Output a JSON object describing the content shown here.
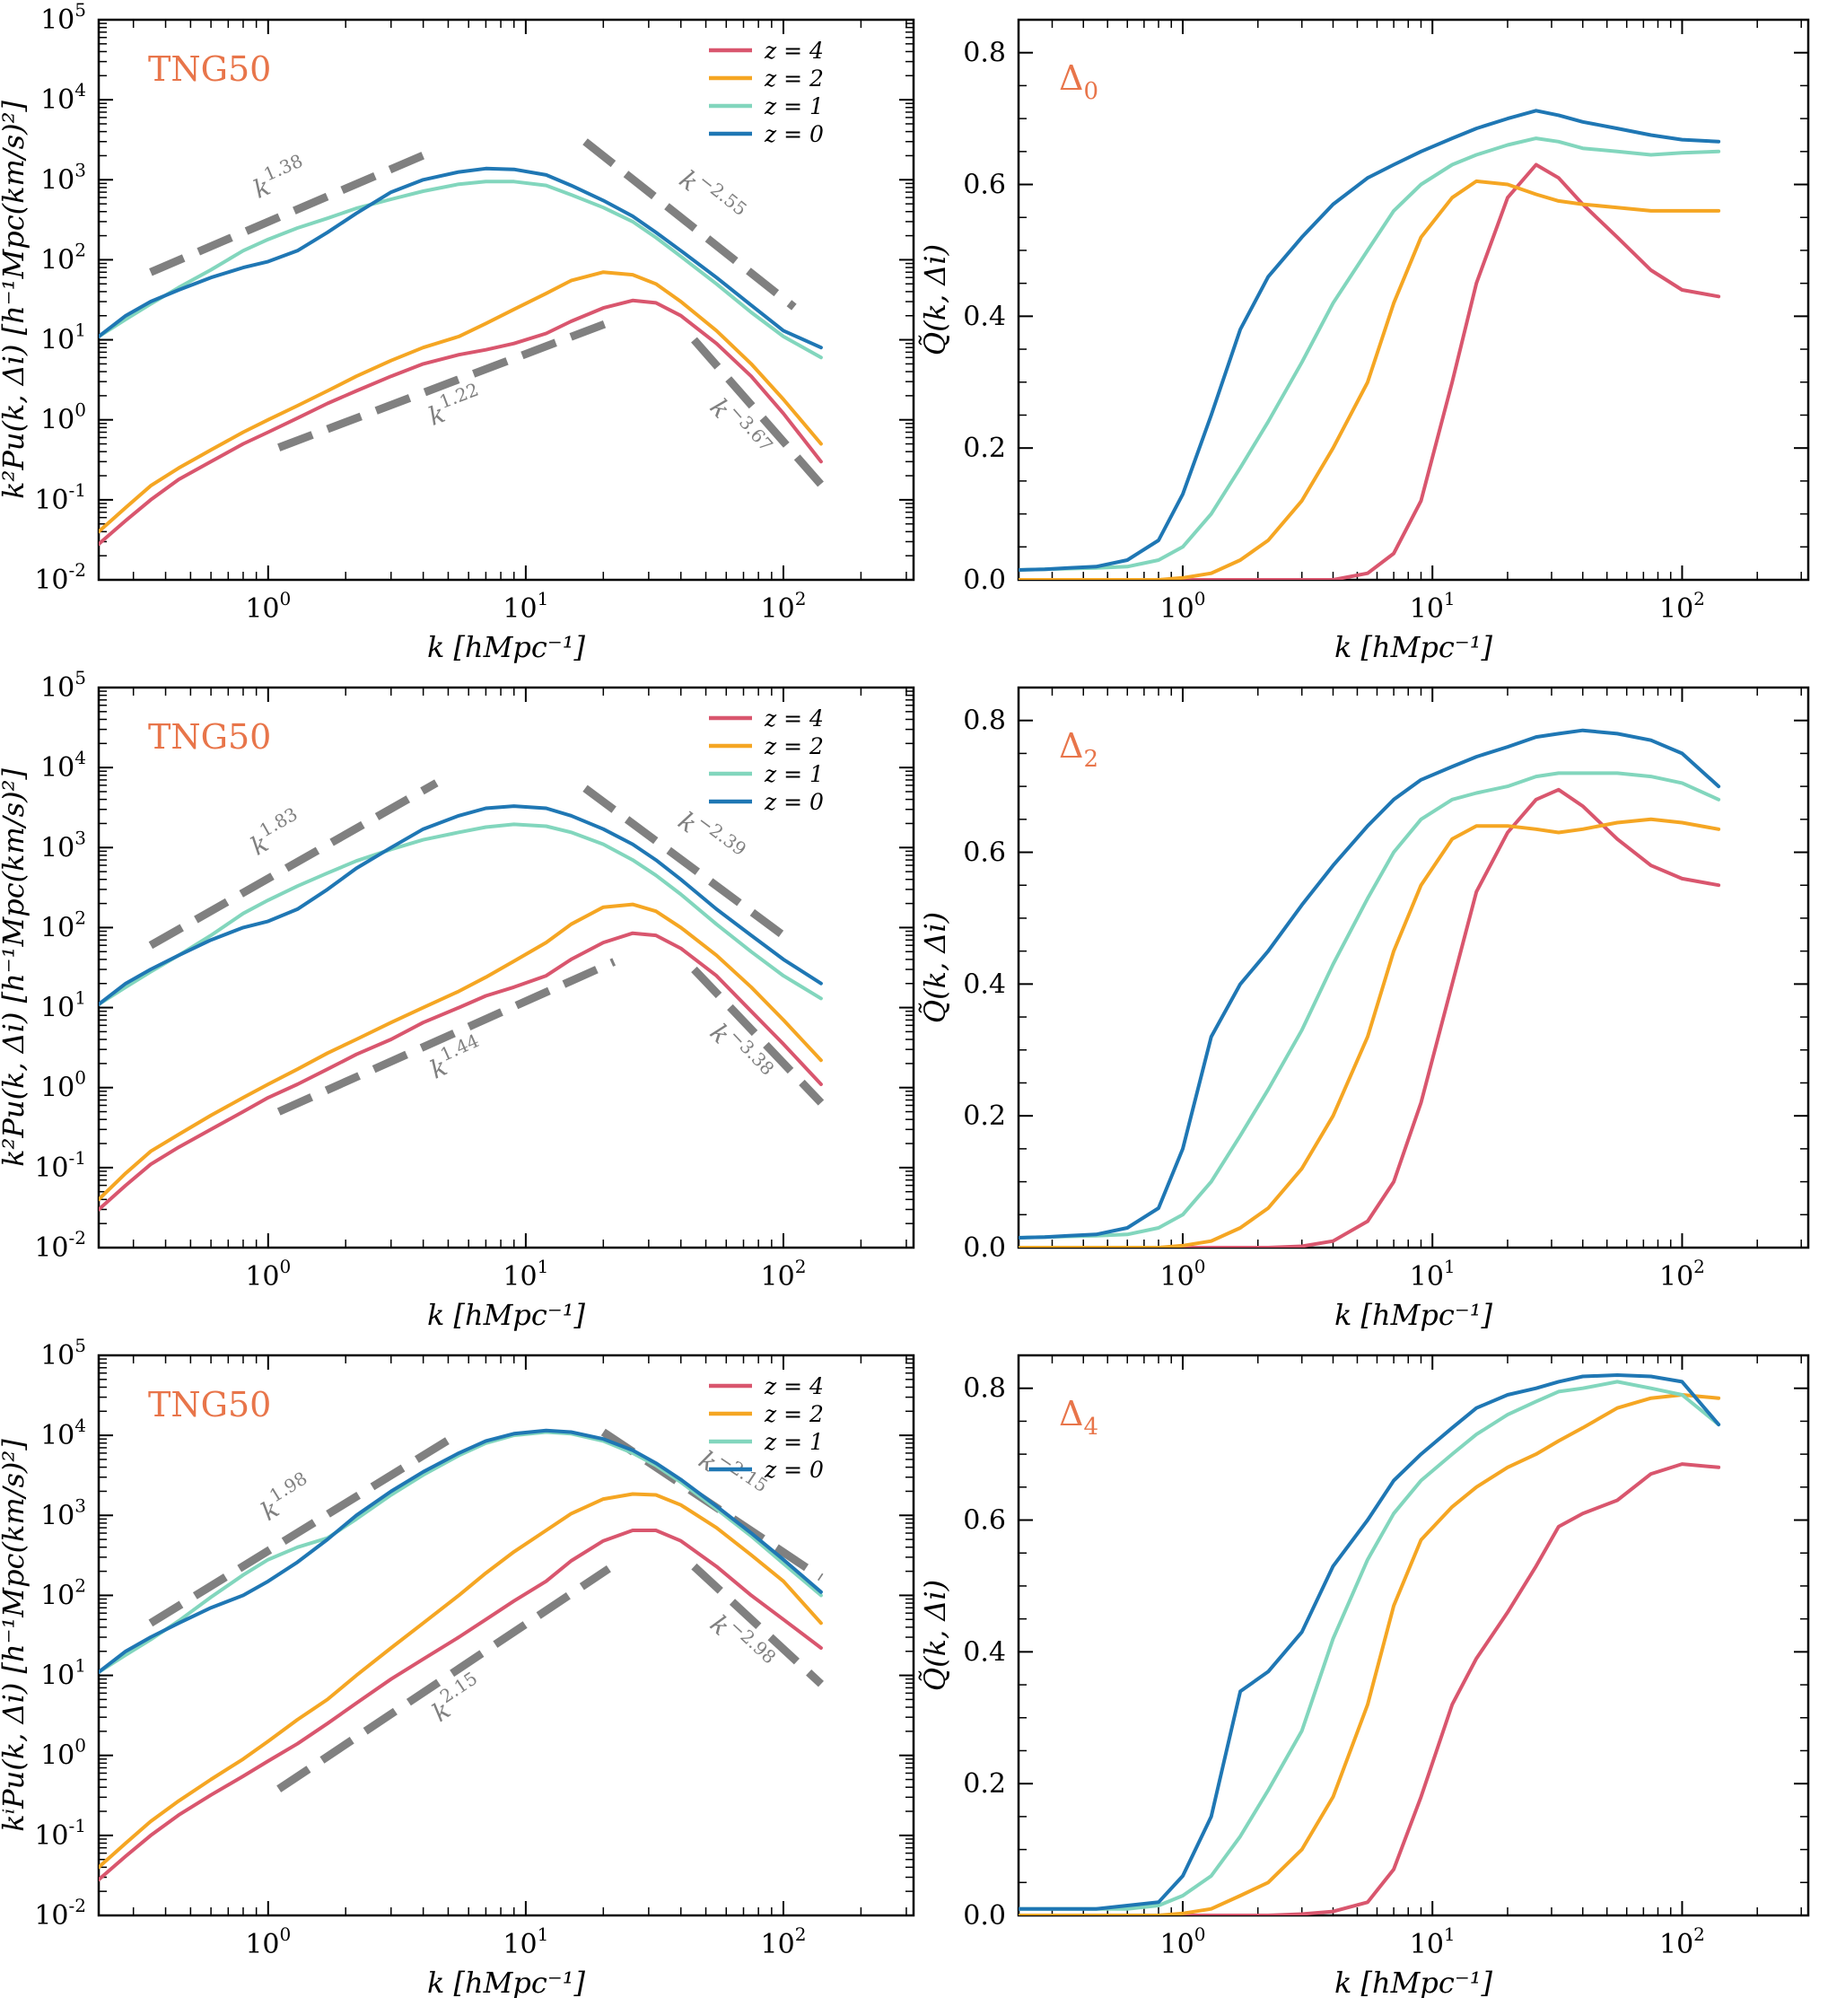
{
  "colors": {
    "z4": "#d9566e",
    "z2": "#f5a623",
    "z1": "#82d6bd",
    "z0": "#1f77b4",
    "guide": "#808080",
    "tag": "#e8754a"
  },
  "legend": [
    "z = 4",
    "z = 2",
    "z = 1",
    "z = 0"
  ],
  "axis_text": {
    "xlabel": "k [hMpc⁻¹]",
    "ylabel_left_top": "k²P̃u(k, Δi) [h⁻¹Mpc(km/s)²]",
    "ylabel_left_bottom": "kⁱP̃u(k, Δi) [h⁻¹Mpc(km/s)²]",
    "ylabel_right": "Q̃(k, Δi)"
  },
  "chart_data": [
    {
      "id": "power-delta0",
      "type": "line",
      "tag": "TNG50",
      "xscale": "log",
      "yscale": "log",
      "xlim": [
        0.22,
        320
      ],
      "ylim": [
        0.01,
        100000
      ],
      "xticks": [
        "10^0",
        "10^1",
        "10^2"
      ],
      "yticks": [
        "10^-2",
        "10^-1",
        "10^0",
        "10^1",
        "10^2",
        "10^3",
        "10^4",
        "10^5"
      ],
      "x": [
        0.22,
        0.28,
        0.35,
        0.45,
        0.6,
        0.8,
        1.0,
        1.3,
        1.7,
        2.2,
        3,
        4,
        5.5,
        7,
        9,
        12,
        15,
        20,
        26,
        32,
        40,
        55,
        75,
        100,
        140
      ],
      "series": [
        {
          "name": "z = 4",
          "values": [
            0.028,
            0.055,
            0.1,
            0.18,
            0.3,
            0.5,
            0.7,
            1.05,
            1.6,
            2.3,
            3.5,
            5,
            6.5,
            7.5,
            9,
            12,
            17,
            25,
            31,
            29,
            20,
            9,
            3.5,
            1.2,
            0.3
          ]
        },
        {
          "name": "z = 2",
          "values": [
            0.04,
            0.08,
            0.15,
            0.25,
            0.42,
            0.7,
            1.0,
            1.5,
            2.3,
            3.5,
            5.5,
            8,
            11,
            16,
            24,
            38,
            55,
            70,
            65,
            50,
            30,
            13,
            5,
            1.8,
            0.5
          ]
        },
        {
          "name": "z = 1",
          "values": [
            11,
            18,
            28,
            45,
            75,
            130,
            180,
            250,
            330,
            440,
            570,
            720,
            880,
            950,
            950,
            850,
            650,
            450,
            300,
            190,
            110,
            50,
            22,
            11,
            6
          ]
        },
        {
          "name": "z = 0",
          "values": [
            11,
            20,
            30,
            42,
            60,
            80,
            95,
            130,
            220,
            380,
            700,
            1000,
            1250,
            1380,
            1350,
            1150,
            850,
            550,
            350,
            220,
            130,
            60,
            27,
            13,
            8
          ]
        }
      ],
      "guides": [
        {
          "label": "k",
          "exp": "1.38",
          "slope": 1.38,
          "x": [
            0.35,
            4.5
          ],
          "y0": 70
        },
        {
          "label": "k",
          "exp": "−2.55",
          "slope": -2.55,
          "x": [
            17,
            110
          ],
          "y0": 3000
        },
        {
          "label": "k",
          "exp": "1.22",
          "slope": 1.22,
          "x": [
            1.1,
            22
          ],
          "y0": 0.45
        },
        {
          "label": "k",
          "exp": "−3.67",
          "slope": -3.67,
          "x": [
            45,
            140
          ],
          "y0": 10
        }
      ]
    },
    {
      "id": "q-delta0",
      "type": "line",
      "tag": "Δ0",
      "xscale": "log",
      "yscale": "linear",
      "xlim": [
        0.22,
        320
      ],
      "ylim": [
        0,
        0.85
      ],
      "xticks": [
        "10^0",
        "10^1",
        "10^2"
      ],
      "yticks": [
        "0.0",
        "0.2",
        "0.4",
        "0.6",
        "0.8"
      ],
      "x": [
        0.22,
        0.28,
        0.35,
        0.45,
        0.6,
        0.8,
        1.0,
        1.3,
        1.7,
        2.2,
        3,
        4,
        5.5,
        7,
        9,
        12,
        15,
        20,
        26,
        32,
        40,
        55,
        75,
        100,
        140
      ],
      "series": [
        {
          "name": "z = 4",
          "values": [
            0,
            0,
            0,
            0,
            0,
            0,
            0,
            0,
            0,
            0,
            0,
            0,
            0.01,
            0.04,
            0.12,
            0.3,
            0.45,
            0.58,
            0.63,
            0.61,
            0.57,
            0.52,
            0.47,
            0.44,
            0.43
          ]
        },
        {
          "name": "z = 2",
          "values": [
            0,
            0,
            0,
            0,
            0,
            0,
            0.003,
            0.01,
            0.03,
            0.06,
            0.12,
            0.2,
            0.3,
            0.42,
            0.52,
            0.58,
            0.605,
            0.6,
            0.585,
            0.575,
            0.57,
            0.565,
            0.56,
            0.56,
            0.56
          ]
        },
        {
          "name": "z = 1",
          "values": [
            0.015,
            0.016,
            0.017,
            0.018,
            0.02,
            0.03,
            0.05,
            0.1,
            0.17,
            0.24,
            0.33,
            0.42,
            0.5,
            0.56,
            0.6,
            0.63,
            0.645,
            0.66,
            0.67,
            0.665,
            0.655,
            0.65,
            0.645,
            0.648,
            0.65
          ]
        },
        {
          "name": "z = 0",
          "values": [
            0.015,
            0.016,
            0.018,
            0.02,
            0.03,
            0.06,
            0.13,
            0.25,
            0.38,
            0.46,
            0.52,
            0.57,
            0.61,
            0.63,
            0.65,
            0.67,
            0.685,
            0.7,
            0.712,
            0.705,
            0.695,
            0.685,
            0.675,
            0.668,
            0.665
          ]
        }
      ]
    },
    {
      "id": "power-delta2",
      "type": "line",
      "tag": "TNG50",
      "xscale": "log",
      "yscale": "log",
      "xlim": [
        0.22,
        320
      ],
      "ylim": [
        0.01,
        100000
      ],
      "xticks": [
        "10^0",
        "10^1",
        "10^2"
      ],
      "yticks": [
        "10^-2",
        "10^-1",
        "10^0",
        "10^1",
        "10^2",
        "10^3",
        "10^4",
        "10^5"
      ],
      "x": [
        0.22,
        0.28,
        0.35,
        0.45,
        0.6,
        0.8,
        1.0,
        1.3,
        1.7,
        2.2,
        3,
        4,
        5.5,
        7,
        9,
        12,
        15,
        20,
        26,
        32,
        40,
        55,
        75,
        100,
        140
      ],
      "series": [
        {
          "name": "z = 4",
          "values": [
            0.03,
            0.06,
            0.11,
            0.18,
            0.3,
            0.5,
            0.75,
            1.1,
            1.7,
            2.6,
            4,
            6.5,
            10,
            14,
            18,
            25,
            40,
            65,
            85,
            80,
            55,
            25,
            9,
            3.5,
            1.1
          ]
        },
        {
          "name": "z = 2",
          "values": [
            0.04,
            0.085,
            0.16,
            0.26,
            0.45,
            0.75,
            1.1,
            1.7,
            2.7,
            4,
            6.5,
            10,
            16,
            24,
            38,
            65,
            110,
            180,
            195,
            160,
            100,
            45,
            18,
            7,
            2.2
          ]
        },
        {
          "name": "z = 1",
          "values": [
            11,
            18,
            28,
            45,
            80,
            150,
            220,
            330,
            480,
            680,
            950,
            1250,
            1550,
            1800,
            1950,
            1850,
            1550,
            1100,
            700,
            450,
            260,
            110,
            50,
            25,
            13
          ]
        },
        {
          "name": "z = 0",
          "values": [
            11,
            20,
            30,
            45,
            70,
            100,
            120,
            170,
            300,
            550,
            1000,
            1700,
            2500,
            3100,
            3300,
            3100,
            2500,
            1700,
            1100,
            700,
            400,
            170,
            80,
            40,
            20
          ]
        }
      ],
      "guides": [
        {
          "label": "k",
          "exp": "1.83",
          "slope": 1.83,
          "x": [
            0.35,
            4.5
          ],
          "y0": 60
        },
        {
          "label": "k",
          "exp": "−2.39",
          "slope": -2.39,
          "x": [
            17,
            110
          ],
          "y0": 5500
        },
        {
          "label": "k",
          "exp": "1.44",
          "slope": 1.44,
          "x": [
            1.1,
            22
          ],
          "y0": 0.5
        },
        {
          "label": "k",
          "exp": "−3.38",
          "slope": -3.38,
          "x": [
            45,
            140
          ],
          "y0": 30
        }
      ]
    },
    {
      "id": "q-delta2",
      "type": "line",
      "tag": "Δ2",
      "xscale": "log",
      "yscale": "linear",
      "xlim": [
        0.22,
        320
      ],
      "ylim": [
        0,
        0.85
      ],
      "xticks": [
        "10^0",
        "10^1",
        "10^2"
      ],
      "yticks": [
        "0.0",
        "0.2",
        "0.4",
        "0.6",
        "0.8"
      ],
      "x": [
        0.22,
        0.28,
        0.35,
        0.45,
        0.6,
        0.8,
        1.0,
        1.3,
        1.7,
        2.2,
        3,
        4,
        5.5,
        7,
        9,
        12,
        15,
        20,
        26,
        32,
        40,
        55,
        75,
        100,
        140
      ],
      "series": [
        {
          "name": "z = 4",
          "values": [
            0,
            0,
            0,
            0,
            0,
            0,
            0,
            0,
            0,
            0,
            0.002,
            0.01,
            0.04,
            0.1,
            0.22,
            0.4,
            0.54,
            0.63,
            0.68,
            0.695,
            0.67,
            0.62,
            0.58,
            0.56,
            0.55
          ]
        },
        {
          "name": "z = 2",
          "values": [
            0,
            0,
            0,
            0,
            0,
            0,
            0.003,
            0.01,
            0.03,
            0.06,
            0.12,
            0.2,
            0.32,
            0.45,
            0.55,
            0.62,
            0.64,
            0.64,
            0.635,
            0.63,
            0.635,
            0.645,
            0.65,
            0.645,
            0.635
          ]
        },
        {
          "name": "z = 1",
          "values": [
            0.015,
            0.016,
            0.017,
            0.018,
            0.02,
            0.03,
            0.05,
            0.1,
            0.17,
            0.24,
            0.33,
            0.43,
            0.53,
            0.6,
            0.65,
            0.68,
            0.69,
            0.7,
            0.715,
            0.72,
            0.72,
            0.72,
            0.715,
            0.705,
            0.68
          ]
        },
        {
          "name": "z = 0",
          "values": [
            0.015,
            0.016,
            0.018,
            0.02,
            0.03,
            0.06,
            0.15,
            0.32,
            0.4,
            0.45,
            0.52,
            0.58,
            0.64,
            0.68,
            0.71,
            0.73,
            0.745,
            0.76,
            0.775,
            0.78,
            0.785,
            0.78,
            0.77,
            0.75,
            0.7
          ]
        }
      ]
    },
    {
      "id": "power-delta4",
      "type": "line",
      "tag": "TNG50",
      "xscale": "log",
      "yscale": "log",
      "xlim": [
        0.22,
        320
      ],
      "ylim": [
        0.01,
        100000
      ],
      "xticks": [
        "10^0",
        "10^1",
        "10^2"
      ],
      "yticks": [
        "10^-2",
        "10^-1",
        "10^0",
        "10^1",
        "10^2",
        "10^3",
        "10^4",
        "10^5"
      ],
      "x": [
        0.22,
        0.28,
        0.35,
        0.45,
        0.6,
        0.8,
        1.0,
        1.3,
        1.7,
        2.2,
        3,
        4,
        5.5,
        7,
        9,
        12,
        15,
        20,
        26,
        32,
        40,
        55,
        75,
        100,
        140
      ],
      "series": [
        {
          "name": "z = 4",
          "values": [
            0.028,
            0.055,
            0.1,
            0.18,
            0.32,
            0.55,
            0.85,
            1.4,
            2.5,
            4.5,
            9,
            16,
            30,
            50,
            85,
            150,
            270,
            480,
            650,
            650,
            480,
            230,
            100,
            50,
            22
          ]
        },
        {
          "name": "z = 2",
          "values": [
            0.04,
            0.08,
            0.15,
            0.27,
            0.5,
            0.9,
            1.5,
            2.8,
            5,
            10,
            22,
            45,
            100,
            190,
            350,
            650,
            1050,
            1600,
            1850,
            1800,
            1350,
            700,
            320,
            150,
            45
          ]
        },
        {
          "name": "z = 1",
          "values": [
            11,
            18,
            28,
            48,
            95,
            180,
            280,
            400,
            520,
            900,
            1800,
            3200,
            5600,
            8000,
            10000,
            11000,
            10500,
            8500,
            6000,
            4200,
            2600,
            1200,
            550,
            250,
            100
          ]
        },
        {
          "name": "z = 0",
          "values": [
            11,
            20,
            30,
            45,
            70,
            100,
            150,
            260,
            500,
            1000,
            2000,
            3500,
            6000,
            8500,
            10500,
            11500,
            11000,
            9000,
            6500,
            4500,
            2800,
            1300,
            600,
            280,
            110
          ]
        }
      ],
      "guides": [
        {
          "label": "k",
          "exp": "1.98",
          "slope": 1.98,
          "x": [
            0.35,
            5.5
          ],
          "y0": 45
        },
        {
          "label": "k",
          "exp": "−2.15",
          "slope": -2.15,
          "x": [
            20,
            140
          ],
          "y0": 11000
        },
        {
          "label": "k",
          "exp": "2.15",
          "slope": 2.15,
          "x": [
            1.1,
            21
          ],
          "y0": 0.38
        },
        {
          "label": "k",
          "exp": "−2.98",
          "slope": -2.98,
          "x": [
            45,
            140
          ],
          "y0": 230
        }
      ]
    },
    {
      "id": "q-delta4",
      "type": "line",
      "tag": "Δ4",
      "xscale": "log",
      "yscale": "linear",
      "xlim": [
        0.22,
        320
      ],
      "ylim": [
        0,
        0.85
      ],
      "xticks": [
        "10^0",
        "10^1",
        "10^2"
      ],
      "yticks": [
        "0.0",
        "0.2",
        "0.4",
        "0.6",
        "0.8"
      ],
      "x": [
        0.22,
        0.28,
        0.35,
        0.45,
        0.6,
        0.8,
        1.0,
        1.3,
        1.7,
        2.2,
        3,
        4,
        5.5,
        7,
        9,
        12,
        15,
        20,
        26,
        32,
        40,
        55,
        75,
        100,
        140
      ],
      "series": [
        {
          "name": "z = 4",
          "values": [
            0,
            0,
            0,
            0,
            0,
            0,
            0,
            0,
            0,
            0,
            0.002,
            0.006,
            0.02,
            0.07,
            0.18,
            0.32,
            0.39,
            0.46,
            0.53,
            0.59,
            0.61,
            0.63,
            0.67,
            0.685,
            0.68
          ]
        },
        {
          "name": "z = 2",
          "values": [
            0,
            0,
            0,
            0,
            0,
            0,
            0.003,
            0.01,
            0.03,
            0.05,
            0.1,
            0.18,
            0.32,
            0.47,
            0.57,
            0.62,
            0.65,
            0.68,
            0.7,
            0.72,
            0.74,
            0.77,
            0.785,
            0.79,
            0.785
          ]
        },
        {
          "name": "z = 1",
          "values": [
            0.01,
            0.01,
            0.01,
            0.01,
            0.01,
            0.015,
            0.03,
            0.06,
            0.12,
            0.19,
            0.28,
            0.42,
            0.54,
            0.61,
            0.66,
            0.7,
            0.73,
            0.76,
            0.78,
            0.795,
            0.8,
            0.81,
            0.8,
            0.79,
            0.745
          ]
        },
        {
          "name": "z = 0",
          "values": [
            0.01,
            0.01,
            0.01,
            0.01,
            0.015,
            0.02,
            0.06,
            0.15,
            0.34,
            0.37,
            0.43,
            0.53,
            0.6,
            0.66,
            0.7,
            0.74,
            0.77,
            0.79,
            0.8,
            0.81,
            0.818,
            0.82,
            0.818,
            0.81,
            0.745
          ]
        }
      ]
    }
  ]
}
